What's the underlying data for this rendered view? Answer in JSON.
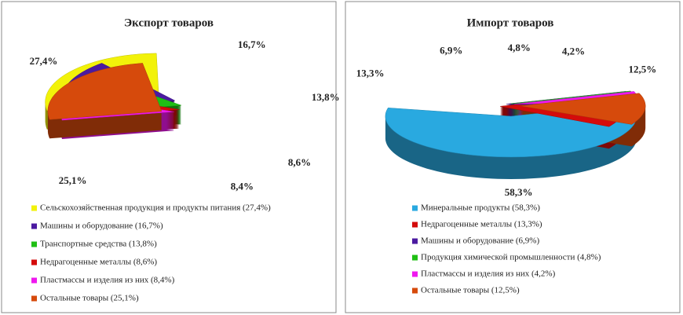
{
  "chart_data": [
    {
      "type": "pie",
      "title": "Экспорт товаров",
      "categories": [
        "Сельскохозяйственная продукция и продукты питания (27,4%)",
        "Машины и оборудование (16,7%)",
        "Транспортные средства (13,8%)",
        "Недрагоценные металлы (8,6%)",
        "Пластмассы и изделия из них (8,4%)",
        "Остальные товары (25,1%)"
      ],
      "values": [
        27.4,
        16.7,
        13.8,
        8.6,
        8.4,
        25.1
      ],
      "value_labels": [
        "27,4%",
        "16,7%",
        "13,8%",
        "8,6%",
        "8,4%",
        "25,1%"
      ],
      "colors": [
        "#f2f20a",
        "#4b1aa0",
        "#1fbf14",
        "#d40b0b",
        "#ef18ef",
        "#d64a0c"
      ]
    },
    {
      "type": "pie",
      "title": "Импорт товаров",
      "categories": [
        "Минеральные продукты (58,3%)",
        "Недрагоценные металлы (13,3%)",
        "Машины и оборудование (6,9%)",
        "Продукция химической промышленности (4,8%)",
        "Пластмассы и изделия из них (4,2%)",
        "Остальные товары (12,5%)"
      ],
      "values": [
        58.3,
        13.3,
        6.9,
        4.8,
        4.2,
        12.5
      ],
      "value_labels": [
        "58,3%",
        "13,3%",
        "6,9%",
        "4,8%",
        "4,2%",
        "12,5%"
      ],
      "colors": [
        "#29a9e0",
        "#d40b0b",
        "#4b1aa0",
        "#1fbf14",
        "#ef18ef",
        "#d64a0c"
      ]
    }
  ]
}
